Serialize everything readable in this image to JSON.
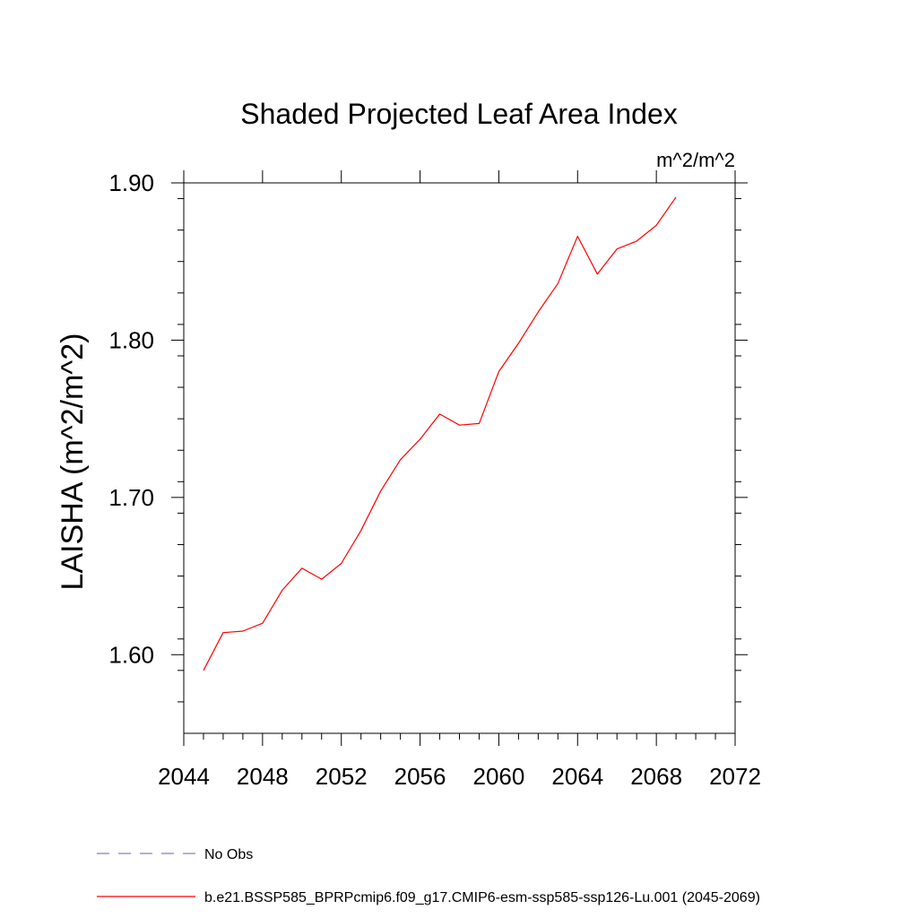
{
  "chart_data": {
    "type": "line",
    "title": "Shaded Projected Leaf Area Index",
    "units_label": "m^2/m^2",
    "ylabel": "LAISHA  (m^2/m^2)",
    "xlabel": "",
    "xlim": [
      2044,
      2072
    ],
    "ylim": [
      1.55,
      1.9
    ],
    "x_ticks": [
      2044,
      2048,
      2052,
      2056,
      2060,
      2064,
      2068,
      2072
    ],
    "x_tick_labels": [
      "2044",
      "2048",
      "2052",
      "2056",
      "2060",
      "2064",
      "2068",
      "2072"
    ],
    "y_ticks": [
      1.6,
      1.7,
      1.8,
      1.9
    ],
    "y_tick_labels": [
      "1.60",
      "1.70",
      "1.80",
      "1.90"
    ],
    "grid": false,
    "series": [
      {
        "name": "b.e21.BSSP585_BPRPcmip6.f09_g17.CMIP6-esm-ssp585-ssp126-Lu.001 (2045-2069)",
        "color": "#ff0000",
        "dash": "solid",
        "x": [
          2045,
          2046,
          2047,
          2048,
          2049,
          2050,
          2051,
          2052,
          2053,
          2054,
          2055,
          2056,
          2057,
          2058,
          2059,
          2060,
          2061,
          2062,
          2063,
          2064,
          2065,
          2066,
          2067,
          2068,
          2069
        ],
        "y": [
          1.59,
          1.614,
          1.615,
          1.62,
          1.641,
          1.655,
          1.648,
          1.658,
          1.679,
          1.704,
          1.724,
          1.737,
          1.753,
          1.746,
          1.747,
          1.78,
          1.798,
          1.818,
          1.836,
          1.866,
          1.842,
          1.858,
          1.863,
          1.873,
          1.891
        ]
      }
    ],
    "legend": [
      {
        "label": "No Obs",
        "color": "#8080c0",
        "dash": "dashed"
      },
      {
        "label": "b.e21.BSSP585_BPRPcmip6.f09_g17.CMIP6-esm-ssp585-ssp126-Lu.001 (2045-2069)",
        "color": "#ff0000",
        "dash": "solid"
      }
    ],
    "legend_position": "bottom-left"
  }
}
